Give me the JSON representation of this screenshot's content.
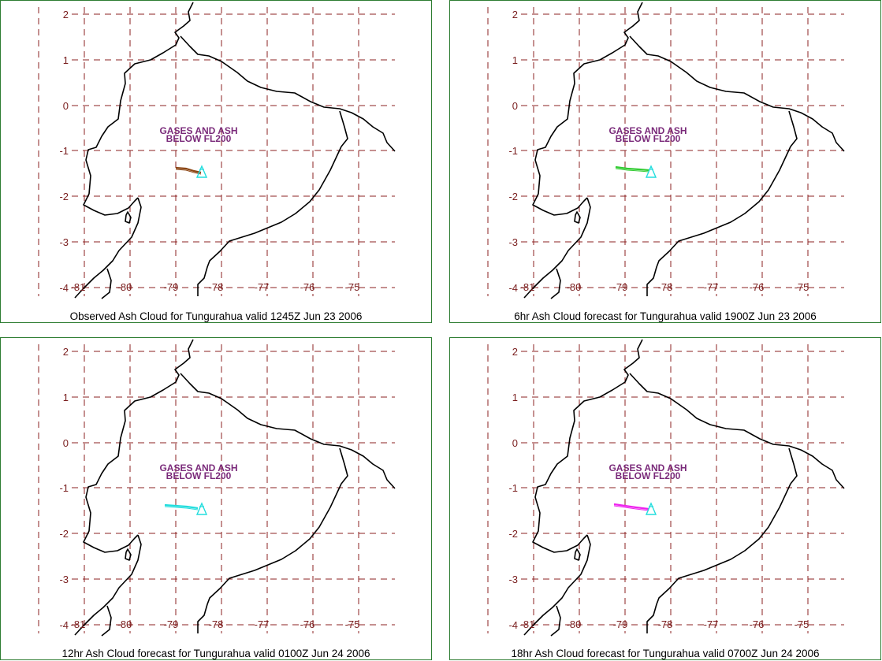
{
  "panels": [
    {
      "caption": "Observed Ash Cloud for Tungurahua valid 1245Z Jun 23 2006",
      "cloud_label_line1": "GASES AND ASH",
      "cloud_label_line2": "BELOW FL200",
      "plume_color": "#8b4513"
    },
    {
      "caption": "6hr Ash Cloud forecast for Tungurahua valid 1900Z Jun 23 2006",
      "cloud_label_line1": "GASES AND ASH",
      "cloud_label_line2": "BELOW FL200",
      "plume_color": "#33cc33"
    },
    {
      "caption": "12hr Ash Cloud forecast for Tungurahua valid 0100Z Jun 24 2006",
      "cloud_label_line1": "GASES AND ASH",
      "cloud_label_line2": "BELOW FL200",
      "plume_color": "#22dddd"
    },
    {
      "caption": "18hr Ash Cloud forecast for Tungurahua valid 0700Z Jun 24 2006",
      "cloud_label_line1": "GASES AND ASH",
      "cloud_label_line2": "BELOW FL200",
      "plume_color": "#ee22ee"
    }
  ],
  "lat_labels": [
    "2",
    "1",
    "0",
    "-1",
    "-2",
    "-3",
    "-4"
  ],
  "lon_labels": [
    "-81",
    "-80",
    "-79",
    "-78",
    "-77",
    "-76",
    "-75"
  ],
  "volcano_color": "#22dddd"
}
